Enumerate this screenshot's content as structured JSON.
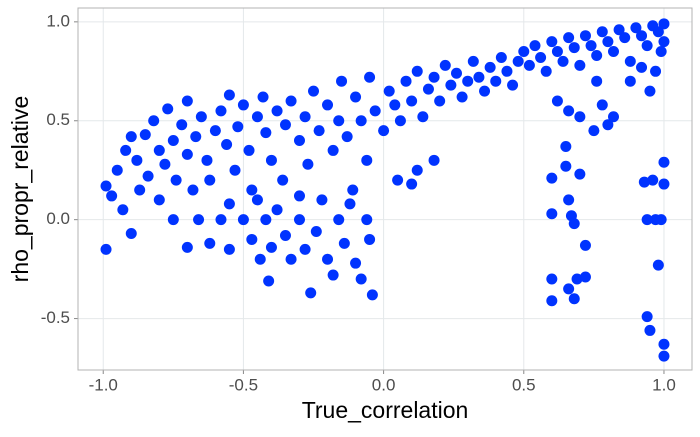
{
  "chart_data": {
    "type": "scatter",
    "x_label": "True_correlation",
    "y_label": "rho_propr_relative",
    "color": "#0033ff",
    "xlim": [
      -1.09,
      1.1
    ],
    "ylim": [
      -0.76,
      1.07
    ],
    "xticks": [
      {
        "value": -1,
        "label": "-1.0"
      },
      -0.5,
      {
        "value": 0,
        "label": "0.0"
      },
      0.5,
      {
        "value": 1,
        "label": "1.0"
      }
    ],
    "yticks": [
      -0.5,
      {
        "value": 0,
        "label": "0.0"
      },
      0.5,
      {
        "value": 1,
        "label": "1.0"
      }
    ],
    "grid": true,
    "x": [
      -0.99,
      -0.99,
      -0.97,
      -0.95,
      -0.93,
      -0.92,
      -0.9,
      -0.9,
      -0.88,
      -0.87,
      -0.85,
      -0.84,
      -0.82,
      -0.8,
      -0.8,
      -0.78,
      -0.77,
      -0.75,
      -0.74,
      -0.72,
      -0.7,
      -0.7,
      -0.68,
      -0.67,
      -0.65,
      -0.63,
      -0.62,
      -0.6,
      -0.58,
      -0.56,
      -0.55,
      -0.53,
      -0.52,
      -0.5,
      -0.48,
      -0.47,
      -0.45,
      -0.43,
      -0.42,
      -0.4,
      -0.38,
      -0.36,
      -0.35,
      -0.33,
      -0.3,
      -0.28,
      -0.27,
      -0.25,
      -0.23,
      -0.2,
      -0.18,
      -0.16,
      -0.15,
      -0.13,
      -0.1,
      -0.08,
      -0.06,
      -0.05,
      -0.03,
      0,
      0.02,
      0.04,
      0.06,
      0.08,
      0.1,
      0.12,
      0.14,
      0.16,
      0.18,
      0.2,
      0.22,
      0.24,
      0.26,
      0.28,
      0.3,
      0.32,
      0.34,
      0.36,
      0.38,
      0.4,
      0.42,
      0.44,
      0.46,
      0.48,
      0.5,
      0.52,
      0.54,
      0.56,
      0.58,
      0.6,
      0.62,
      0.64,
      0.66,
      0.68,
      0.7,
      0.72,
      0.74,
      0.76,
      0.78,
      0.8,
      0.82,
      0.84,
      0.86,
      0.88,
      0.9,
      0.92,
      0.94,
      0.96,
      0.98,
      1,
      1,
      0.99,
      0.97,
      0.95,
      0.62,
      0.66,
      0.7,
      0.78,
      0.82,
      0.76,
      0.88,
      0.92,
      -0.75,
      -0.7,
      -0.66,
      -0.62,
      -0.58,
      -0.55,
      -0.5,
      -0.47,
      -0.44,
      -0.42,
      -0.4,
      -0.38,
      -0.35,
      -0.33,
      -0.3,
      -0.28,
      -0.26,
      -0.24,
      -0.22,
      -0.2,
      -0.18,
      -0.16,
      -0.14,
      -0.12,
      -0.1,
      -0.08,
      -0.06,
      -0.05,
      -0.11,
      -0.45,
      -0.55,
      -0.3,
      -0.04,
      0.05,
      0.1,
      0.12,
      0.18,
      -0.41,
      0.6,
      0.6,
      0.6,
      0.6,
      0.65,
      0.65,
      0.66,
      0.67,
      0.68,
      0.66,
      0.68,
      0.69,
      0.7,
      0.72,
      0.72,
      0.75,
      0.8,
      0.96,
      0.97,
      0.99,
      1,
      1,
      0.98,
      0.94,
      0.95,
      1,
      1,
      0.93,
      0.94
    ],
    "values": [
      0.17,
      -0.15,
      0.12,
      0.25,
      0.05,
      0.35,
      0.42,
      -0.07,
      0.3,
      0.15,
      0.43,
      0.22,
      0.5,
      0.35,
      0.1,
      0.28,
      0.56,
      0.4,
      0.2,
      0.48,
      0.33,
      0.6,
      0.15,
      0.42,
      0.52,
      0.3,
      0.2,
      0.45,
      0.55,
      0.38,
      0.63,
      0.25,
      0.47,
      0.58,
      0.35,
      0.15,
      0.52,
      0.62,
      0.44,
      0.3,
      0.55,
      0.2,
      0.48,
      0.6,
      0.4,
      0.52,
      0.28,
      0.65,
      0.45,
      0.58,
      0.35,
      0.5,
      0.7,
      0.42,
      0.62,
      0.5,
      0.3,
      0.72,
      0.55,
      0.45,
      0.65,
      0.58,
      0.5,
      0.7,
      0.6,
      0.75,
      0.52,
      0.66,
      0.72,
      0.6,
      0.78,
      0.68,
      0.74,
      0.62,
      0.7,
      0.8,
      0.72,
      0.65,
      0.77,
      0.7,
      0.82,
      0.75,
      0.68,
      0.8,
      0.85,
      0.78,
      0.88,
      0.82,
      0.75,
      0.9,
      0.85,
      0.8,
      0.92,
      0.87,
      0.78,
      0.93,
      0.88,
      0.83,
      0.95,
      0.9,
      0.85,
      0.96,
      0.92,
      0.8,
      0.97,
      0.93,
      0.88,
      0.98,
      0.95,
      0.99,
      0.9,
      0.85,
      0.75,
      0.65,
      0.6,
      0.55,
      0.52,
      0.58,
      0.52,
      0.7,
      0.7,
      0.77,
      0,
      -0.14,
      0,
      -0.12,
      0,
      -0.15,
      0,
      -0.1,
      -0.2,
      0,
      -0.14,
      0.05,
      -0.08,
      -0.2,
      0,
      -0.15,
      -0.37,
      -0.06,
      0.1,
      -0.2,
      -0.28,
      0,
      -0.12,
      0.08,
      -0.22,
      -0.3,
      0,
      -0.1,
      0.15,
      0.1,
      0.08,
      0.12,
      -0.38,
      0.2,
      0.18,
      0.25,
      0.3,
      -0.31,
      0.21,
      0.03,
      -0.3,
      -0.41,
      0.37,
      0.27,
      0.1,
      0.02,
      -0.02,
      -0.35,
      -0.4,
      -0.3,
      0.23,
      -0.13,
      -0.29,
      0.45,
      0.48,
      0.2,
      0,
      0,
      0.29,
      0.18,
      -0.23,
      -0.49,
      -0.56,
      -0.63,
      -0.69,
      0.19,
      0
    ]
  }
}
